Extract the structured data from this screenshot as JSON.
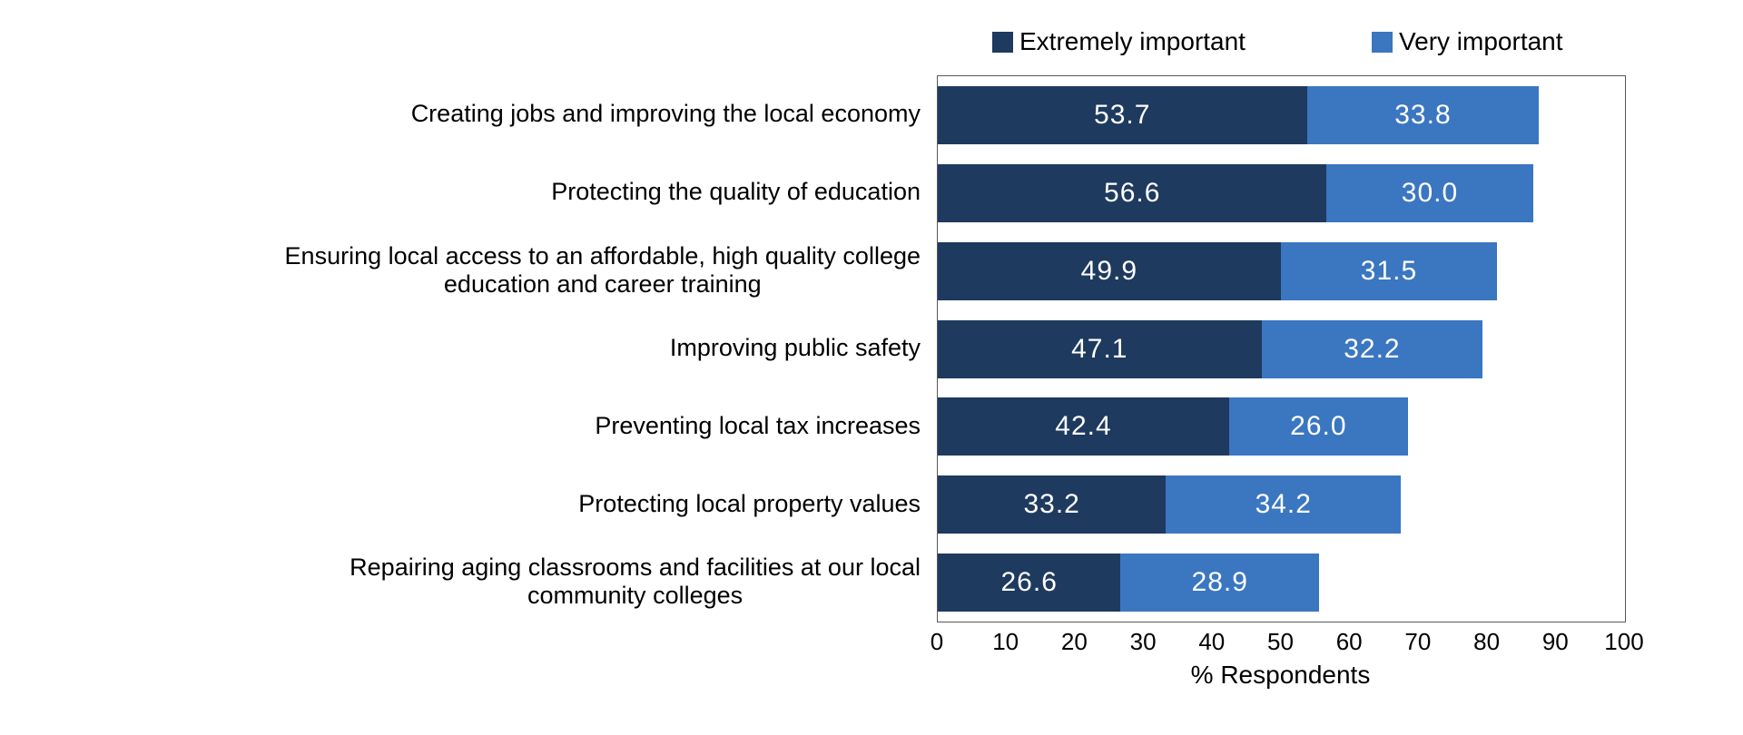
{
  "chart_data": {
    "type": "bar",
    "orientation": "horizontal",
    "stacked": true,
    "title": "",
    "xlabel": "% Respondents",
    "ylabel": "",
    "xlim": [
      0,
      100
    ],
    "xticks": [
      0,
      10,
      20,
      30,
      40,
      50,
      60,
      70,
      80,
      90,
      100
    ],
    "grid": false,
    "legend_position": "top",
    "plot_border_color": "#595959",
    "value_label_color": "#FFFFFF",
    "categories": [
      "Creating jobs and improving the local economy",
      "Protecting the quality of education",
      "Ensuring local access to an affordable, high quality college education and career training",
      "Improving public safety",
      "Preventing local tax increases",
      "Protecting local property values",
      "Repairing aging classrooms and facilities at our local community colleges"
    ],
    "category_label_lines": [
      [
        "Creating jobs and improving the local economy"
      ],
      [
        "Protecting the quality of education"
      ],
      [
        "Ensuring local access to an affordable, high quality college",
        "education and career training"
      ],
      [
        "Improving public safety"
      ],
      [
        "Preventing local tax increases"
      ],
      [
        "Protecting local property values"
      ],
      [
        "Repairing aging classrooms and facilities at our local",
        "community colleges"
      ]
    ],
    "series": [
      {
        "name": "Extremely important",
        "color": "#1E3A5F",
        "values": [
          53.7,
          56.6,
          49.9,
          47.1,
          42.4,
          33.2,
          26.6
        ]
      },
      {
        "name": "Very important",
        "color": "#3B76C1",
        "values": [
          33.8,
          30.0,
          31.5,
          32.2,
          26.0,
          34.2,
          28.9
        ]
      }
    ]
  }
}
